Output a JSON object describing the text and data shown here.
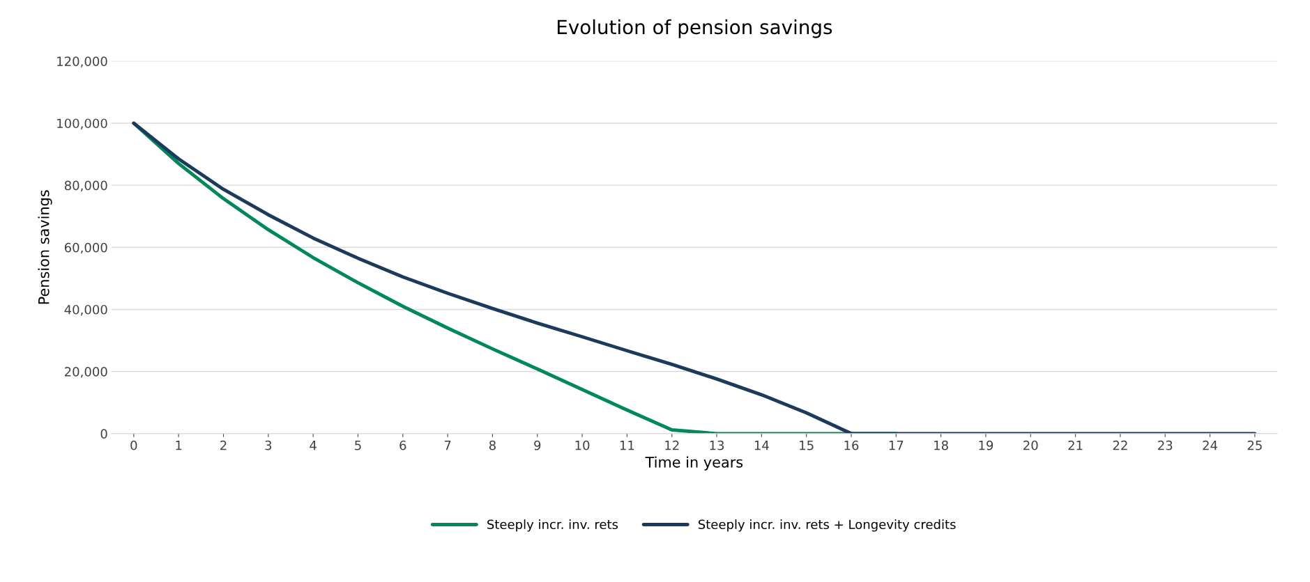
{
  "chart_data": {
    "type": "line",
    "title": "Evolution of pension savings",
    "xlabel": "Time in years",
    "ylabel": "Pension savings",
    "categories": [
      "0",
      "1",
      "2",
      "3",
      "4",
      "5",
      "6",
      "7",
      "8",
      "9",
      "10",
      "11",
      "12",
      "13",
      "14",
      "15",
      "16",
      "17",
      "18",
      "19",
      "20",
      "21",
      "22",
      "23",
      "24",
      "25"
    ],
    "series": [
      {
        "name": "Steeply incr. inv. rets",
        "color": "#00875a",
        "values": [
          100000,
          87000,
          75700,
          65700,
          56700,
          48600,
          41000,
          34000,
          27300,
          20800,
          14200,
          7600,
          1200,
          0,
          0,
          0,
          0,
          0,
          null,
          null,
          null,
          null,
          null,
          null,
          null,
          null
        ]
      },
      {
        "name": "Steeply incr. inv. rets + Longevity credits",
        "color": "#1b3a5c",
        "values": [
          100000,
          88500,
          78700,
          70500,
          63000,
          56500,
          50500,
          45200,
          40300,
          35600,
          31200,
          26700,
          22300,
          17600,
          12500,
          6700,
          0,
          0,
          0,
          0,
          0,
          0,
          0,
          0,
          0,
          0
        ]
      }
    ],
    "ylim": [
      0,
      120000
    ],
    "yticks": [
      {
        "value": 0,
        "label": "0"
      },
      {
        "value": 20000,
        "label": "20,000"
      },
      {
        "value": 40000,
        "label": "40,000"
      },
      {
        "value": 60000,
        "label": "60,000"
      },
      {
        "value": 80000,
        "label": "80,000"
      },
      {
        "value": 100000,
        "label": "100,000"
      },
      {
        "value": 120000,
        "label": "120,000"
      }
    ],
    "grid": "y",
    "legend": "bottom",
    "marker": "none",
    "line_style": "solid"
  }
}
